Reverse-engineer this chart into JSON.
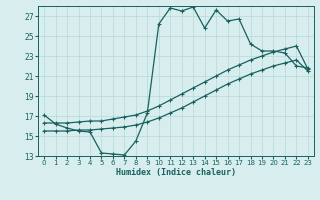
{
  "xlabel": "Humidex (Indice chaleur)",
  "bg_color": "#d8eeee",
  "line_color": "#1a6060",
  "grid_color": "#b8d8d8",
  "xlim": [
    -0.5,
    23.5
  ],
  "ylim": [
    13,
    28
  ],
  "xticks": [
    0,
    1,
    2,
    3,
    4,
    5,
    6,
    7,
    8,
    9,
    10,
    11,
    12,
    13,
    14,
    15,
    16,
    17,
    18,
    19,
    20,
    21,
    22,
    23
  ],
  "yticks": [
    13,
    15,
    17,
    19,
    21,
    23,
    25,
    27
  ],
  "curve1_x": [
    0,
    1,
    2,
    3,
    4,
    5,
    6,
    7,
    8,
    9,
    10,
    11,
    12,
    13,
    14,
    15,
    16,
    17,
    18,
    19,
    20,
    21,
    22,
    23
  ],
  "curve1_y": [
    17.1,
    16.2,
    15.8,
    15.5,
    15.4,
    13.3,
    13.2,
    13.1,
    14.5,
    17.3,
    26.2,
    27.8,
    27.5,
    27.9,
    25.8,
    27.6,
    26.5,
    26.7,
    24.2,
    23.5,
    23.5,
    23.3,
    22.0,
    21.8
  ],
  "curve2_x": [
    0,
    1,
    2,
    3,
    4,
    5,
    6,
    7,
    8,
    9,
    10,
    11,
    12,
    13,
    14,
    15,
    16,
    17,
    18,
    19,
    20,
    21,
    22,
    23
  ],
  "curve2_y": [
    16.3,
    16.3,
    16.3,
    16.4,
    16.5,
    16.5,
    16.7,
    16.9,
    17.1,
    17.5,
    18.0,
    18.6,
    19.2,
    19.8,
    20.4,
    21.0,
    21.6,
    22.1,
    22.6,
    23.0,
    23.4,
    23.7,
    24.0,
    21.7
  ],
  "curve3_x": [
    0,
    1,
    2,
    3,
    4,
    5,
    6,
    7,
    8,
    9,
    10,
    11,
    12,
    13,
    14,
    15,
    16,
    17,
    18,
    19,
    20,
    21,
    22,
    23
  ],
  "curve3_y": [
    15.5,
    15.5,
    15.5,
    15.6,
    15.6,
    15.7,
    15.8,
    15.9,
    16.1,
    16.4,
    16.8,
    17.3,
    17.8,
    18.4,
    19.0,
    19.6,
    20.2,
    20.7,
    21.2,
    21.6,
    22.0,
    22.3,
    22.6,
    21.5
  ]
}
